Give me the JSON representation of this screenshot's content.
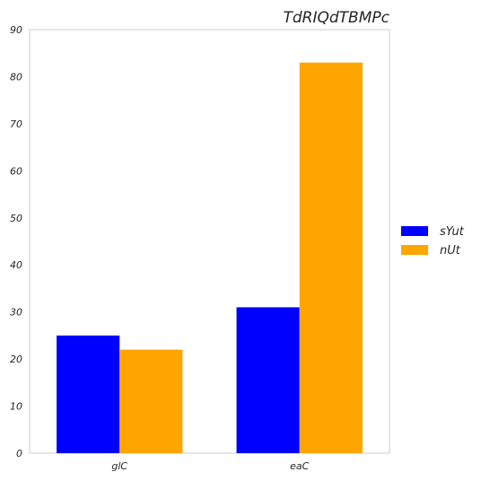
{
  "chart_data": {
    "type": "bar",
    "title": "TdRIQdTBMPc",
    "xlabel": "",
    "ylabel": "",
    "categories": [
      "glC",
      "eaC"
    ],
    "series": [
      {
        "name": "sYut",
        "values": [
          25,
          31
        ],
        "color": "#0000ff"
      },
      {
        "name": "nUt",
        "values": [
          22,
          83
        ],
        "color": "#ffa500"
      }
    ],
    "ylim": [
      0,
      90
    ],
    "yticks": [
      0,
      10,
      20,
      30,
      40,
      50,
      60,
      70,
      80,
      90
    ],
    "grid": false,
    "legend_position": "right"
  }
}
